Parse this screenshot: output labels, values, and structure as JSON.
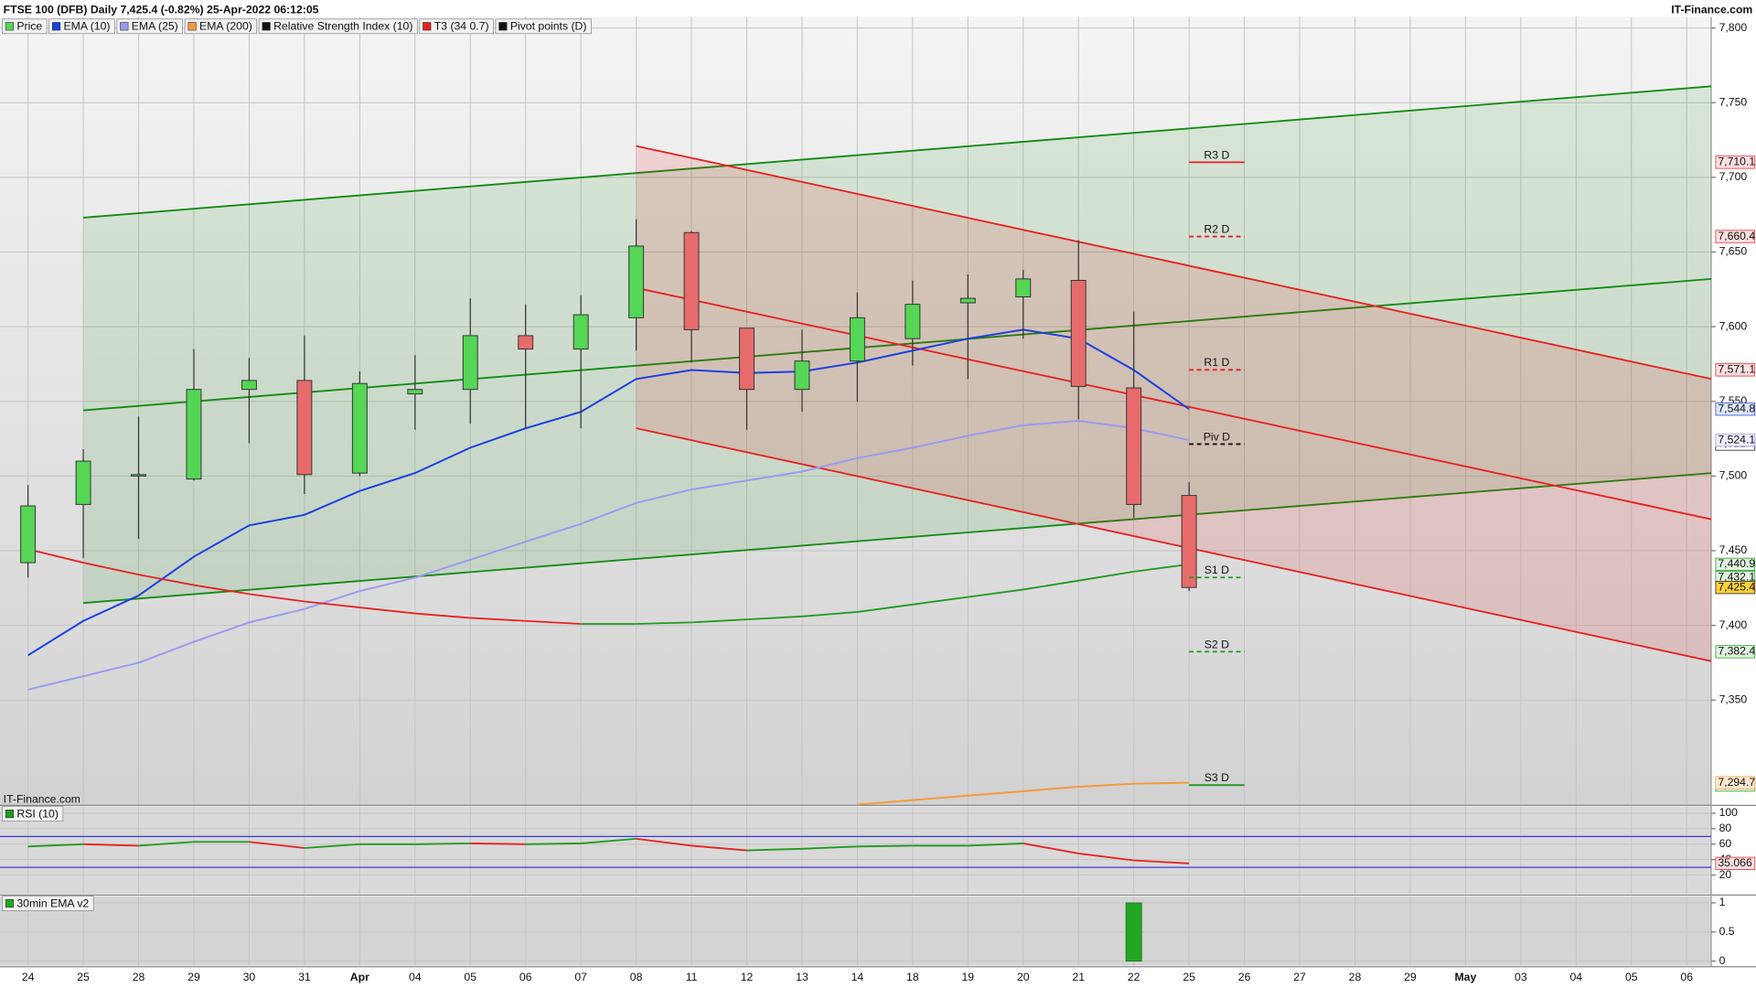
{
  "chart_data": [
    {
      "type": "candlestick",
      "title": "FTSE 100 (DFB) Daily 7,425.4 (-0.82%) 25-Apr-2022 06:12:05",
      "source": "IT-Finance.com",
      "watermark": "IT-Finance.com",
      "categories": [
        "24",
        "25",
        "28",
        "29",
        "30",
        "31",
        "Apr",
        "04",
        "05",
        "06",
        "07",
        "08",
        "11",
        "12",
        "13",
        "14",
        "18",
        "19",
        "20",
        "21",
        "22",
        "25",
        "26",
        "27",
        "28",
        "29",
        "May",
        "03",
        "04",
        "05",
        "06"
      ],
      "ylim": [
        7280,
        7807.5
      ],
      "yticks": [
        {
          "value": 7350,
          "label": "7,350"
        },
        {
          "value": 7400,
          "label": "7,400"
        },
        {
          "value": 7450,
          "label": "7,450"
        },
        {
          "value": 7500,
          "label": "7,500"
        },
        {
          "value": 7550,
          "label": "7,550"
        },
        {
          "value": 7600,
          "label": "7,600"
        },
        {
          "value": 7650,
          "label": "7,650"
        },
        {
          "value": 7700,
          "label": "7,700"
        },
        {
          "value": 7750,
          "label": "7,750"
        },
        {
          "value": 7800,
          "label": "7,800"
        }
      ],
      "grid": true,
      "candles": {
        "name": "Price",
        "up_color": "#55d655",
        "down_color": "#e86b6b",
        "open": [
          7442,
          7481,
          7500,
          7498,
          7558,
          7564,
          7502,
          7555,
          7558,
          7594,
          7585,
          7606,
          7663,
          7599,
          7558,
          7577,
          7592,
          7616,
          7620,
          7631,
          7559,
          7487,
          null,
          null,
          null,
          null,
          null,
          null,
          null,
          null,
          null
        ],
        "high": [
          7494,
          7518,
          7540,
          7585,
          7579,
          7594,
          7570,
          7581,
          7619,
          7615,
          7621,
          7672,
          7664,
          7599,
          7598,
          7623,
          7631,
          7635,
          7638,
          7658,
          7610,
          7496,
          null,
          null,
          null,
          null,
          null,
          null,
          null,
          null,
          null
        ],
        "low": [
          7432,
          7445,
          7458,
          7497,
          7522,
          7488,
          7500,
          7531,
          7535,
          7532,
          7532,
          7584,
          7576,
          7531,
          7543,
          7550,
          7574,
          7565,
          7592,
          7538,
          7472,
          7423,
          null,
          null,
          null,
          null,
          null,
          null,
          null,
          null,
          null
        ],
        "close": [
          7480,
          7510,
          7501,
          7558,
          7564,
          7501,
          7562,
          7558,
          7594,
          7585,
          7608,
          7654,
          7598,
          7558,
          7577,
          7606,
          7615,
          7619,
          7632,
          7560,
          7481,
          7425.4,
          null,
          null,
          null,
          null,
          null,
          null,
          null,
          null,
          null
        ],
        "value_labels": [
          null,
          null,
          null,
          null,
          null,
          null,
          null,
          null,
          null,
          null,
          null,
          null,
          null,
          null,
          null,
          null,
          null,
          null,
          null,
          null,
          null,
          "7,425.4",
          null,
          null,
          null,
          null,
          null,
          null,
          null,
          null,
          null
        ]
      },
      "series": [
        {
          "name": "EMA (10)",
          "color": "#1a3fe0",
          "tag_color": "#dfe6ff",
          "values": [
            7380,
            7403,
            7420,
            7446,
            7467,
            7474,
            7490,
            7502,
            7519,
            7532,
            7543,
            7565,
            7571,
            7569,
            7570,
            7576,
            7584,
            7592,
            7598,
            7592,
            7571,
            7544.8,
            null,
            null,
            null,
            null,
            null,
            null,
            null,
            null,
            null
          ],
          "value_labels": [
            null,
            null,
            null,
            null,
            null,
            null,
            null,
            null,
            null,
            null,
            null,
            null,
            null,
            null,
            null,
            null,
            null,
            null,
            null,
            null,
            null,
            "7,544.8",
            null,
            null,
            null,
            null,
            null,
            null,
            null,
            null,
            null
          ]
        },
        {
          "name": "EMA (25)",
          "color": "#9a9af0",
          "tag_color": "#eeeeff",
          "values": [
            7357,
            7366,
            7375,
            7389,
            7402,
            7411,
            7423,
            7432,
            7444,
            7456,
            7468,
            7482,
            7491,
            7497,
            7503,
            7512,
            7519,
            7527,
            7534,
            7537,
            7532,
            7524.1,
            null,
            null,
            null,
            null,
            null,
            null,
            null,
            null,
            null
          ],
          "value_labels": [
            null,
            null,
            null,
            null,
            null,
            null,
            null,
            null,
            null,
            null,
            null,
            null,
            null,
            null,
            null,
            null,
            null,
            null,
            null,
            null,
            null,
            "7,524.1",
            null,
            null,
            null,
            null,
            null,
            null,
            null,
            null,
            null
          ]
        },
        {
          "name": "EMA (200)",
          "color": "#f59a3c",
          "tag_color": "#fde8d2",
          "values": [
            null,
            null,
            null,
            null,
            null,
            null,
            null,
            null,
            null,
            null,
            null,
            null,
            null,
            null,
            null,
            7280,
            7283,
            7286,
            7289,
            7292,
            7294,
            7294.7,
            null,
            null,
            null,
            null,
            null,
            null,
            null,
            null,
            null
          ],
          "value_labels": [
            null,
            null,
            null,
            null,
            null,
            null,
            null,
            null,
            null,
            null,
            null,
            null,
            null,
            null,
            null,
            null,
            null,
            null,
            null,
            null,
            null,
            "7,294.7",
            null,
            null,
            null,
            null,
            null,
            null,
            null,
            null,
            null
          ]
        },
        {
          "name": "T3 (34 0.7)",
          "color": "#1f9a1f",
          "color_down": "#e52222",
          "tag_color": "#dff2df",
          "values": [
            7451,
            7442,
            7434,
            7427,
            7421,
            7416,
            7412,
            7408,
            7405,
            7403,
            7401,
            7401,
            7402,
            7404,
            7406,
            7409,
            7414,
            7419,
            7424,
            7430,
            7436,
            7440.9,
            null,
            null,
            null,
            null,
            null,
            null,
            null,
            null,
            null
          ],
          "value_labels": [
            null,
            null,
            null,
            null,
            null,
            null,
            null,
            null,
            null,
            null,
            null,
            null,
            null,
            null,
            null,
            null,
            null,
            null,
            null,
            null,
            null,
            "7,440.9",
            null,
            null,
            null,
            null,
            null,
            null,
            null,
            null,
            null
          ]
        }
      ],
      "channels": [
        {
          "color": "#138a13",
          "fill": "rgba(0,140,0,0.10)",
          "x": [
            1,
            30.45
          ],
          "lines": [
            [
              7673,
              7761
            ],
            [
              7544,
              7632
            ],
            [
              7415,
              7502
            ]
          ]
        },
        {
          "color": "#e52222",
          "fill": "rgba(235,0,0,0.12)",
          "x": [
            11,
            30.45
          ],
          "lines": [
            [
              7721,
              7565
            ],
            [
              7626,
              7471
            ],
            [
              7532,
              7376
            ]
          ]
        }
      ],
      "pivots": {
        "name": "Pivot points (D)",
        "levels": [
          {
            "name": "R3 D",
            "value": 7710.1,
            "label": "7,710.1",
            "color": "#e52222",
            "dashed": false
          },
          {
            "name": "R2 D",
            "value": 7660.4,
            "label": "7,660.4",
            "color": "#e52222",
            "dashed": true
          },
          {
            "name": "R1 D",
            "value": 7571.1,
            "label": "7,571.1",
            "color": "#e52222",
            "dashed": true
          },
          {
            "name": "Piv D",
            "value": 7521.4,
            "label": "7,521.4",
            "color": "#111111",
            "dashed": true
          },
          {
            "name": "S1 D",
            "value": 7432.1,
            "label": "7,432.1",
            "color": "#1f9a1f",
            "dashed": true
          },
          {
            "name": "S2 D",
            "value": 7382.4,
            "label": "7,382.4",
            "color": "#1f9a1f",
            "dashed": true
          },
          {
            "name": "S3 D",
            "value": 7293.1,
            "label": "7,293.1",
            "color": "#1f9a1f",
            "dashed": false
          }
        ]
      }
    },
    {
      "type": "line",
      "name": "Relative Strength Index (10)",
      "legend": "RSI (10)",
      "ylim": [
        0,
        100
      ],
      "yticks": [
        20,
        40,
        60,
        80,
        100
      ],
      "levels": [
        30,
        70
      ],
      "level_color": "#3a3ad8",
      "series": [
        {
          "name": "RSI (10)",
          "color": "#1f9a1f",
          "color_down": "#e52222",
          "tag_color": "#fde0e0",
          "values": [
            57,
            60,
            58,
            63,
            63,
            55,
            60,
            60,
            61,
            60,
            61,
            67,
            58,
            52,
            54,
            57,
            58,
            58,
            61,
            48,
            39,
            35.066,
            null,
            null,
            null,
            null,
            null,
            null,
            null,
            null,
            null
          ],
          "value_labels": [
            null,
            null,
            null,
            null,
            null,
            null,
            null,
            null,
            null,
            null,
            null,
            null,
            null,
            null,
            null,
            null,
            null,
            null,
            null,
            null,
            null,
            "35.066",
            null,
            null,
            null,
            null,
            null,
            null,
            null,
            null,
            null
          ]
        }
      ]
    },
    {
      "type": "bar",
      "legend": "30min EMA v2",
      "color": "#22a722",
      "ylim": [
        0,
        1
      ],
      "yticks": [
        0,
        0.5,
        1
      ],
      "values": [
        0,
        0,
        0,
        0,
        0,
        0,
        0,
        0,
        0,
        0,
        0,
        0,
        0,
        0,
        0,
        0,
        0,
        0,
        0,
        0,
        1,
        0,
        null,
        null,
        null,
        null,
        null,
        null,
        null,
        null,
        null
      ]
    }
  ]
}
